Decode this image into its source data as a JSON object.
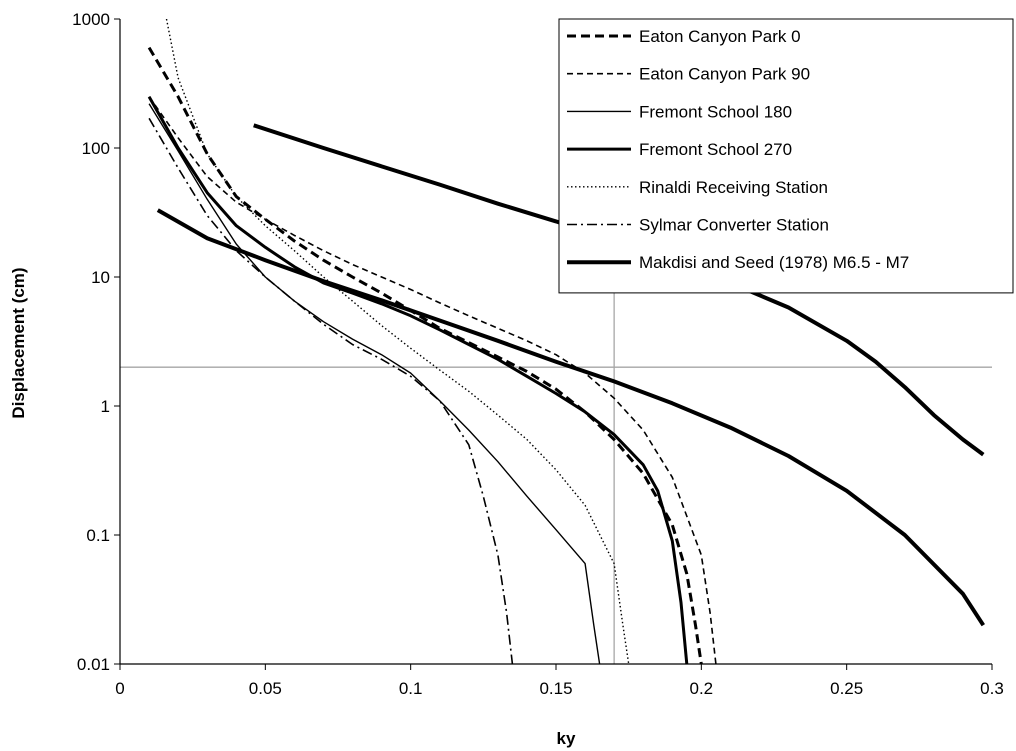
{
  "chart_data": {
    "type": "line",
    "xlabel": "ky",
    "ylabel": "Displacement (cm)",
    "xscale": "linear",
    "yscale": "log",
    "xlim": [
      0,
      0.3
    ],
    "ylim": [
      0.01,
      1000
    ],
    "xticks": [
      "0",
      "0.05",
      "0.1",
      "0.15",
      "0.2",
      "0.25",
      "0.3"
    ],
    "yticks": [
      "0.01",
      "0.1",
      "1",
      "10",
      "100",
      "1000"
    ],
    "legend_position": "top-right",
    "reference_lines": {
      "horizontal_y": 2,
      "vertical_x": 0.17
    },
    "series": [
      {
        "name": "Eaton Canyon Park 0",
        "style": "dashed-medium",
        "color": "#000000",
        "x": [
          0.01,
          0.02,
          0.03,
          0.04,
          0.05,
          0.06,
          0.07,
          0.08,
          0.09,
          0.1,
          0.11,
          0.12,
          0.13,
          0.14,
          0.15,
          0.16,
          0.17,
          0.18,
          0.19,
          0.195,
          0.198,
          0.2
        ],
        "y": [
          600,
          250,
          90,
          42,
          28,
          19,
          13.5,
          10,
          7.5,
          5.5,
          4,
          3.1,
          2.4,
          1.85,
          1.35,
          0.9,
          0.55,
          0.3,
          0.12,
          0.05,
          0.02,
          0.01
        ]
      },
      {
        "name": "Eaton Canyon Park 90",
        "style": "dashed-thin",
        "color": "#000000",
        "x": [
          0.01,
          0.02,
          0.03,
          0.04,
          0.05,
          0.06,
          0.07,
          0.08,
          0.09,
          0.1,
          0.11,
          0.12,
          0.13,
          0.14,
          0.15,
          0.16,
          0.17,
          0.18,
          0.19,
          0.2,
          0.203,
          0.205
        ],
        "y": [
          250,
          120,
          60,
          38,
          28,
          21,
          16,
          12.5,
          10,
          8,
          6.3,
          5,
          4,
          3.2,
          2.5,
          1.8,
          1.15,
          0.65,
          0.28,
          0.07,
          0.025,
          0.01
        ]
      },
      {
        "name": "Fremont School 180",
        "style": "solid-thin",
        "color": "#000000",
        "x": [
          0.01,
          0.02,
          0.03,
          0.04,
          0.05,
          0.06,
          0.07,
          0.08,
          0.09,
          0.1,
          0.11,
          0.12,
          0.13,
          0.14,
          0.15,
          0.16,
          0.163,
          0.165
        ],
        "y": [
          220,
          95,
          40,
          18,
          10,
          6.5,
          4.5,
          3.3,
          2.5,
          1.8,
          1.1,
          0.65,
          0.37,
          0.2,
          0.11,
          0.06,
          0.02,
          0.01
        ]
      },
      {
        "name": "Fremont School 270",
        "style": "solid-medium",
        "color": "#000000",
        "x": [
          0.01,
          0.02,
          0.03,
          0.04,
          0.05,
          0.06,
          0.07,
          0.08,
          0.09,
          0.1,
          0.11,
          0.12,
          0.13,
          0.14,
          0.15,
          0.16,
          0.17,
          0.18,
          0.185,
          0.19,
          0.193,
          0.195
        ],
        "y": [
          250,
          100,
          45,
          25,
          17,
          12,
          9,
          7.5,
          6.2,
          5,
          3.9,
          3,
          2.3,
          1.7,
          1.25,
          0.9,
          0.6,
          0.35,
          0.22,
          0.09,
          0.03,
          0.01
        ]
      },
      {
        "name": "Rinaldi Receiving Station",
        "style": "dotted",
        "color": "#000000",
        "x": [
          0.016,
          0.02,
          0.03,
          0.04,
          0.05,
          0.06,
          0.07,
          0.08,
          0.09,
          0.1,
          0.11,
          0.12,
          0.13,
          0.14,
          0.15,
          0.16,
          0.17,
          0.173,
          0.175
        ],
        "y": [
          1000,
          350,
          90,
          42,
          25,
          16,
          10,
          6.5,
          4.2,
          2.8,
          1.9,
          1.3,
          0.85,
          0.55,
          0.32,
          0.17,
          0.06,
          0.02,
          0.01
        ]
      },
      {
        "name": "Sylmar Converter Station",
        "style": "dash-dot",
        "color": "#000000",
        "x": [
          0.01,
          0.02,
          0.03,
          0.04,
          0.05,
          0.06,
          0.07,
          0.08,
          0.09,
          0.1,
          0.11,
          0.12,
          0.125,
          0.13,
          0.133,
          0.135
        ],
        "y": [
          170,
          70,
          30,
          16,
          10,
          6.5,
          4.3,
          3,
          2.3,
          1.7,
          1.1,
          0.5,
          0.2,
          0.07,
          0.025,
          0.01
        ]
      },
      {
        "name": "Makdisi and Seed (1978) M6.5 - M7",
        "style": "solid-thick",
        "color": "#000000",
        "x": [
          0.013,
          0.03,
          0.05,
          0.07,
          0.09,
          0.11,
          0.13,
          0.15,
          0.17,
          0.19,
          0.21,
          0.23,
          0.25,
          0.27,
          0.29,
          0.297
        ],
        "y": [
          33,
          20,
          13.5,
          9.3,
          6.6,
          4.6,
          3.2,
          2.2,
          1.55,
          1.05,
          0.68,
          0.41,
          0.22,
          0.1,
          0.035,
          0.02
        ]
      },
      {
        "name": "Makdisi and Seed (1978) M6.5 - M7",
        "style": "solid-thick",
        "color": "#000000",
        "legend": false,
        "x": [
          0.046,
          0.07,
          0.09,
          0.11,
          0.13,
          0.15,
          0.17,
          0.19,
          0.21,
          0.23,
          0.25,
          0.26,
          0.27,
          0.28,
          0.29,
          0.297
        ],
        "y": [
          150,
          100,
          72,
          52,
          37,
          27,
          19,
          13.5,
          9,
          5.8,
          3.2,
          2.2,
          1.4,
          0.85,
          0.55,
          0.42
        ]
      }
    ]
  }
}
